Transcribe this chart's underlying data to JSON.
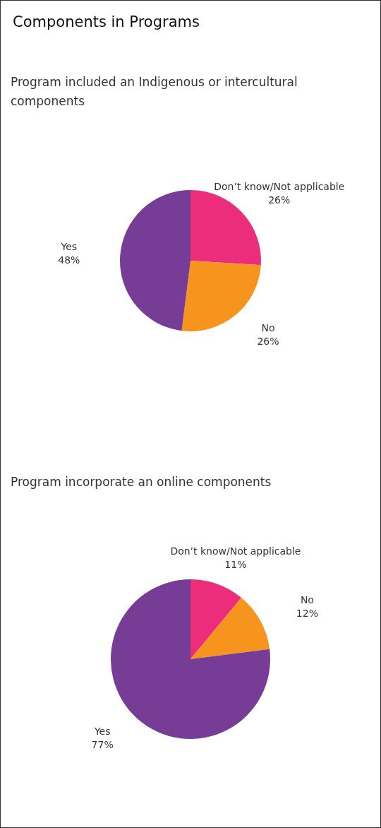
{
  "chart_data": [
    {
      "type": "pie",
      "title": "Components in Programs",
      "subtitle": "Program included an Indigenous or intercultural components",
      "categories": [
        "Don’t know/Not applicable",
        "No",
        "Yes"
      ],
      "values": [
        26,
        26,
        48
      ],
      "value_labels": [
        "26%",
        "26%",
        "48%"
      ],
      "colors": [
        "#ec2d7b",
        "#f7941d",
        "#763c96"
      ]
    },
    {
      "type": "pie",
      "subtitle": "Program incorporate an online components",
      "categories": [
        "Don’t know/Not applicable",
        "No",
        "Yes"
      ],
      "values": [
        11,
        12,
        77
      ],
      "value_labels": [
        "11%",
        "12%",
        "77%"
      ],
      "colors": [
        "#ec2d7b",
        "#f7941d",
        "#763c96"
      ]
    }
  ]
}
